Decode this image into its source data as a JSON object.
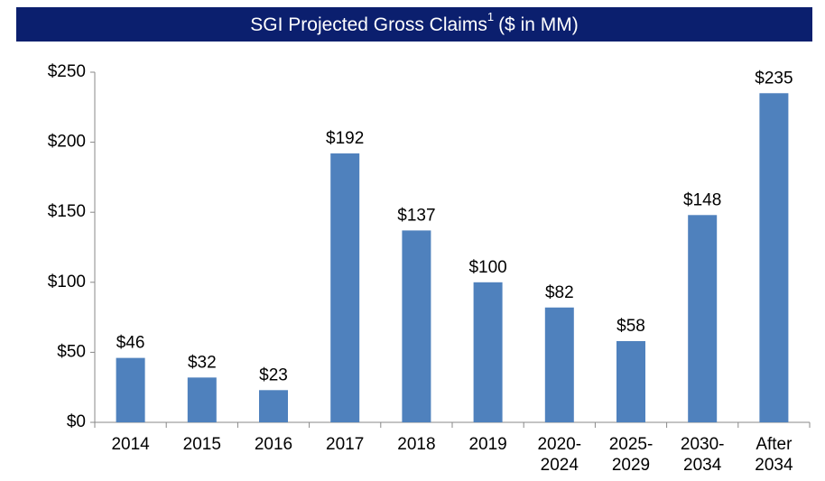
{
  "chart_data": {
    "type": "bar",
    "title": "SGI Projected Gross Claims",
    "title_footnote": "1",
    "title_suffix": "($ in MM)",
    "categories": [
      "2014",
      "2015",
      "2016",
      "2017",
      "2018",
      "2019",
      "2020-2024",
      "2025-2029",
      "2030-2034",
      "After 2034"
    ],
    "values": [
      46,
      32,
      23,
      192,
      137,
      100,
      82,
      58,
      148,
      235
    ],
    "value_labels": [
      "$46",
      "$32",
      "$23",
      "$192",
      "$137",
      "$100",
      "$82",
      "$58",
      "$148",
      "$235"
    ],
    "color": "#4f81bd",
    "ylim": [
      0,
      250
    ],
    "yticks": [
      {
        "value": 0,
        "label": "$0"
      },
      {
        "value": 50,
        "label": "$50"
      },
      {
        "value": 100,
        "label": "$100"
      },
      {
        "value": 150,
        "label": "$150"
      },
      {
        "value": 200,
        "label": "$200"
      },
      {
        "value": 250,
        "label": "$250"
      }
    ],
    "grid": false
  }
}
